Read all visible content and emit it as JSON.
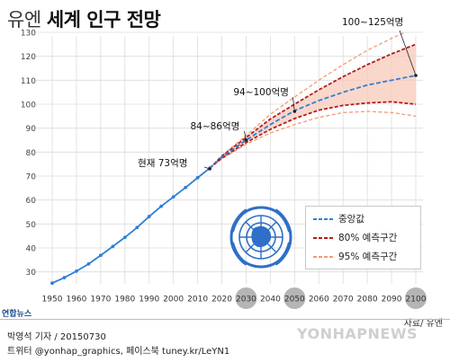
{
  "title": {
    "pre": "유엔",
    "main": "세계 인구 전망"
  },
  "annotations": [
    {
      "text": "현재 73억명",
      "year": 2015,
      "value": 73
    },
    {
      "text": "84~86억명",
      "year": 2030,
      "value": 85
    },
    {
      "text": "94~100억명",
      "year": 2050,
      "value": 97
    },
    {
      "text": "100~125억명",
      "year": 2100,
      "value": 112
    }
  ],
  "legend": [
    {
      "label": "중앙값",
      "color": "#2f7fd6",
      "style": "dash"
    },
    {
      "label": "80% 예측구간",
      "color": "#b31d1d",
      "style": "dash"
    },
    {
      "label": "95% 예측구간",
      "color": "#f39a72",
      "style": "dash"
    }
  ],
  "footer": {
    "source": "자료/ 유엔",
    "credit1": "박영석 기자 / 20150730",
    "credit2": "트위터 @yonhap_graphics, 페이스북 tuney.kr/LeYN1",
    "logo": "연합뉴스",
    "watermark": "YONHAPNEWS"
  },
  "colors": {
    "history": "#2f7fd6",
    "band80_fill": "#f8c9b9",
    "highlight_circle": "#b5b5b5"
  },
  "chart_data": {
    "type": "line",
    "xlim": [
      1950,
      2100
    ],
    "ylim": [
      25,
      130
    ],
    "yticks": [
      30,
      40,
      50,
      60,
      70,
      80,
      90,
      100,
      110,
      120,
      130
    ],
    "xticks": [
      1950,
      1960,
      1970,
      1980,
      1990,
      2000,
      2010,
      2020,
      2030,
      2040,
      2050,
      2060,
      2070,
      2080,
      2090,
      2100
    ],
    "highlighted_years": [
      2030,
      2050,
      2100
    ],
    "grid": true,
    "history": {
      "x": [
        1950,
        1955,
        1960,
        1965,
        1970,
        1975,
        1980,
        1985,
        1990,
        1995,
        2000,
        2005,
        2010,
        2015
      ],
      "y": [
        25.3,
        27.6,
        30.3,
        33.3,
        36.9,
        40.6,
        44.4,
        48.5,
        53.1,
        57.4,
        61.3,
        65.2,
        69.3,
        73.3
      ]
    },
    "projection_x": [
      2015,
      2020,
      2030,
      2040,
      2050,
      2060,
      2070,
      2080,
      2090,
      2100
    ],
    "median": [
      73.3,
      77.9,
      85.0,
      91.5,
      97.3,
      101.5,
      105.0,
      108.0,
      110.0,
      112.0
    ],
    "pi80_upper": [
      73.3,
      78.3,
      86.1,
      93.8,
      100.0,
      106.0,
      111.5,
      116.5,
      121.0,
      125.0
    ],
    "pi80_lower": [
      73.3,
      77.5,
      84.0,
      89.5,
      94.0,
      97.5,
      99.5,
      100.5,
      101.0,
      100.0
    ],
    "pi95_upper": [
      73.3,
      78.6,
      86.9,
      95.8,
      103.0,
      110.0,
      116.5,
      122.5,
      127.5,
      132.0
    ],
    "pi95_lower": [
      73.3,
      77.2,
      83.3,
      88.0,
      91.5,
      94.5,
      96.5,
      97.0,
      96.5,
      95.0
    ]
  }
}
